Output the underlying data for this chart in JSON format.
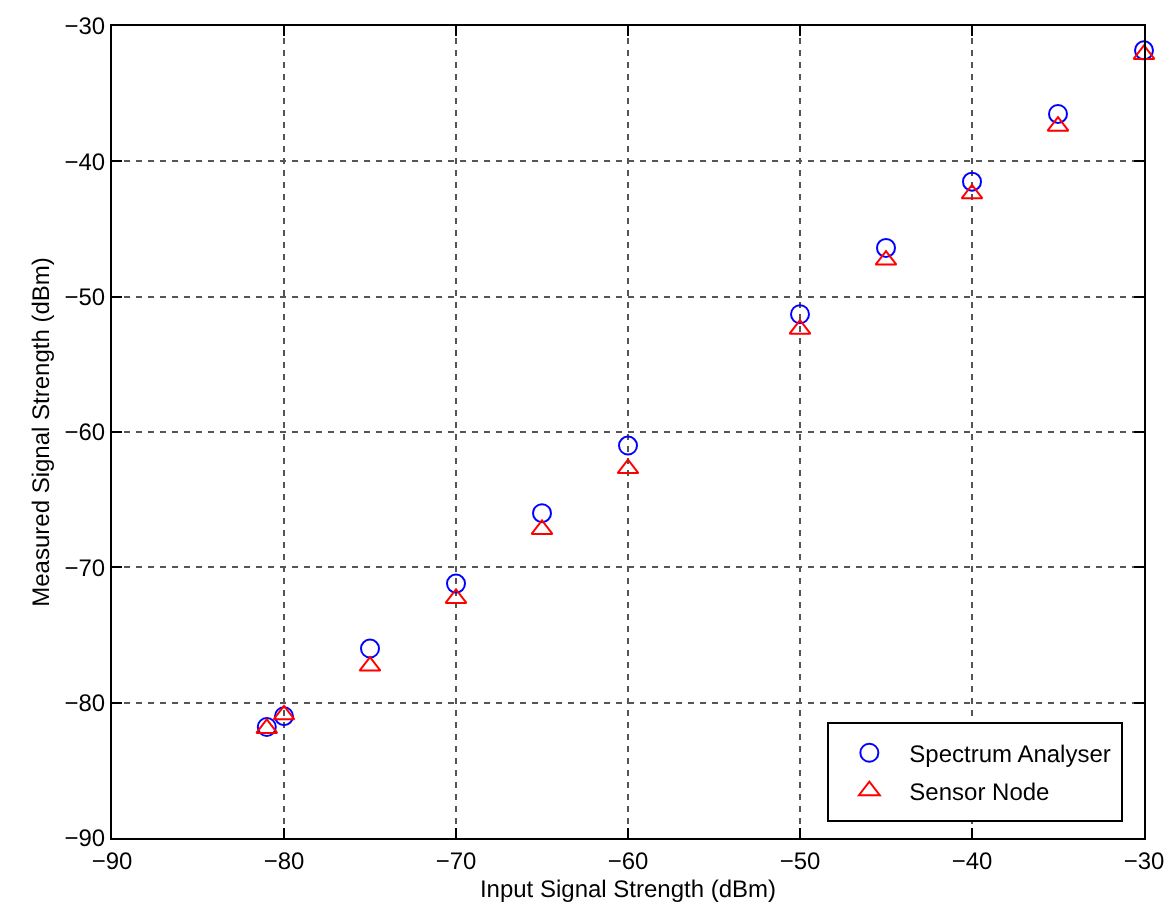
{
  "chart_data": {
    "type": "scatter",
    "xlabel": "Input Signal Strength (dBm)",
    "ylabel": "Measured Signal Strength (dBm)",
    "x": [
      -81,
      -80,
      -75,
      -70,
      -65,
      -60,
      -50,
      -45,
      -40,
      -35,
      -30
    ],
    "series": [
      {
        "name": "Spectrum Analyser",
        "color": "#0000ff",
        "marker": "circle",
        "values": [
          -81.8,
          -81,
          -76,
          -71.2,
          -66,
          -61,
          -51.3,
          -46.4,
          -41.5,
          -36.5,
          -31.8
        ]
      },
      {
        "name": "Sensor Node",
        "color": "#ff0000",
        "marker": "triangle",
        "values": [
          -81.9,
          -80.9,
          -77.3,
          -72.3,
          -67.2,
          -62.7,
          -52.4,
          -47.3,
          -42.4,
          -37.4,
          -32.1
        ]
      }
    ],
    "xlim": [
      -90,
      -30
    ],
    "xticks": [
      -90,
      -80,
      -70,
      -60,
      -50,
      -40,
      -30
    ],
    "ylim": [
      -90,
      -30
    ],
    "yticks": [
      -90,
      -80,
      -70,
      -60,
      -50,
      -40,
      -30
    ],
    "grid": true,
    "legend": "bottom right"
  }
}
